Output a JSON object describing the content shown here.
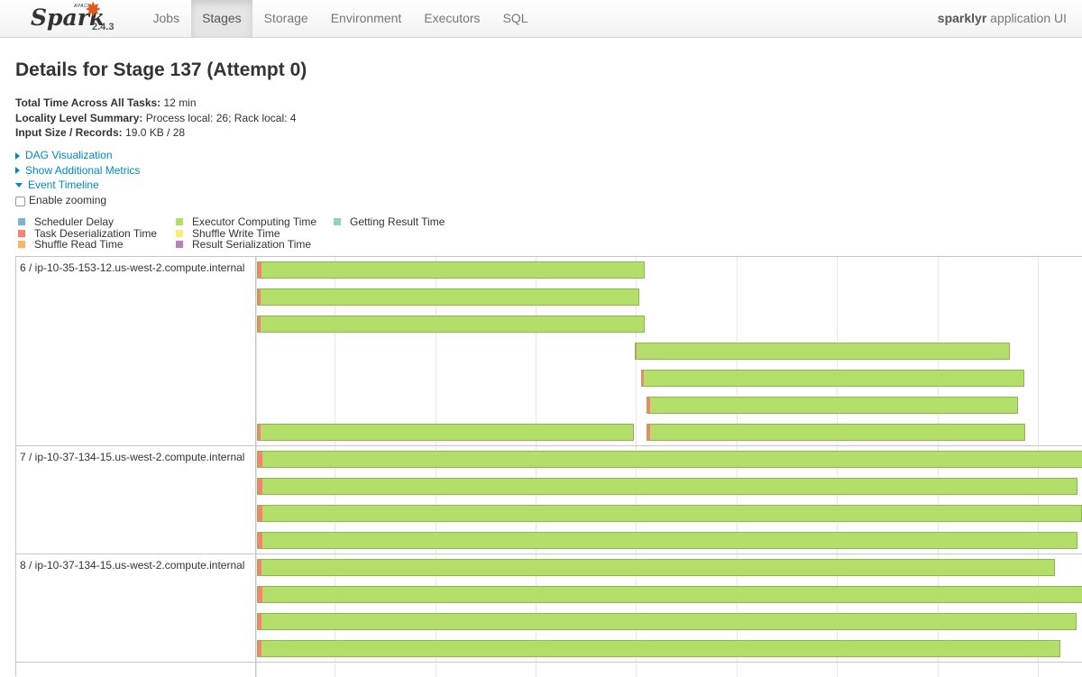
{
  "navbar": {
    "brand": {
      "apache": "APACHE",
      "spark": "Spark",
      "version": "2.4.3"
    },
    "tabs": [
      {
        "label": "Jobs",
        "active": false
      },
      {
        "label": "Stages",
        "active": true
      },
      {
        "label": "Storage",
        "active": false
      },
      {
        "label": "Environment",
        "active": false
      },
      {
        "label": "Executors",
        "active": false
      },
      {
        "label": "SQL",
        "active": false
      }
    ],
    "app_name": "sparklyr",
    "app_suffix": " application UI"
  },
  "page": {
    "title": "Details for Stage 137 (Attempt 0)"
  },
  "summary": [
    {
      "label": "Total Time Across All Tasks:",
      "value": " 12 min"
    },
    {
      "label": "Locality Level Summary:",
      "value": " Process local: 26; Rack local: 4"
    },
    {
      "label": "Input Size / Records:",
      "value": " 19.0 KB / 28"
    }
  ],
  "links": {
    "dag": "DAG Visualization",
    "metrics": "Show Additional Metrics",
    "timeline": "Event Timeline"
  },
  "zoom_label": "Enable zooming",
  "legend": {
    "items": [
      {
        "label": "Scheduler Delay",
        "color": "#80b1d3"
      },
      {
        "label": "Task Deserialization Time",
        "color": "#fb8072"
      },
      {
        "label": "Shuffle Read Time",
        "color": "#fdb462"
      },
      {
        "label": "Executor Computing Time",
        "color": "#b3de69"
      },
      {
        "label": "Shuffle Write Time",
        "color": "#ffed6f"
      },
      {
        "label": "Result Serialization Time",
        "color": "#bc80bd"
      },
      {
        "label": "Getting Result Time",
        "color": "#8dd3c7"
      }
    ]
  },
  "timeline": {
    "groups": [
      {
        "label": "6 / ip-10-35-153-12.us-west-2.compute.internal",
        "lanes": 7
      },
      {
        "label": "7 / ip-10-37-134-15.us-west-2.compute.internal",
        "lanes": 4
      },
      {
        "label": "8 / ip-10-37-134-15.us-west-2.compute.internal",
        "lanes": 4
      }
    ],
    "time_range": [
      0,
      1000
    ],
    "tasks": [
      {
        "group": 0,
        "lane": 0,
        "start": 0,
        "end": 470,
        "deser": 4
      },
      {
        "group": 0,
        "lane": 1,
        "start": 0,
        "end": 464,
        "deser": 3
      },
      {
        "group": 0,
        "lane": 2,
        "start": 0,
        "end": 470,
        "deser": 3
      },
      {
        "group": 0,
        "lane": 3,
        "start": 457,
        "end": 912,
        "deser": 1
      },
      {
        "group": 0,
        "lane": 4,
        "start": 465,
        "end": 929,
        "deser": 2
      },
      {
        "group": 0,
        "lane": 5,
        "start": 471,
        "end": 921,
        "deser": 3
      },
      {
        "group": 0,
        "lane": 6,
        "start": 0,
        "end": 457,
        "deser": 3
      },
      {
        "group": 0,
        "lane": 6,
        "start": 471,
        "end": 930,
        "deser": 3
      },
      {
        "group": 1,
        "lane": 0,
        "start": 0,
        "end": 1000,
        "deser": 5
      },
      {
        "group": 1,
        "lane": 1,
        "start": 0,
        "end": 994,
        "deser": 5
      },
      {
        "group": 1,
        "lane": 2,
        "start": 0,
        "end": 999,
        "deser": 5
      },
      {
        "group": 1,
        "lane": 3,
        "start": 0,
        "end": 993,
        "deser": 5
      },
      {
        "group": 2,
        "lane": 0,
        "start": 0,
        "end": 966,
        "deser": 4
      },
      {
        "group": 2,
        "lane": 1,
        "start": 0,
        "end": 1000,
        "deser": 5
      },
      {
        "group": 2,
        "lane": 2,
        "start": 0,
        "end": 992,
        "deser": 4
      },
      {
        "group": 2,
        "lane": 3,
        "start": 0,
        "end": 973,
        "deser": 4
      }
    ]
  }
}
